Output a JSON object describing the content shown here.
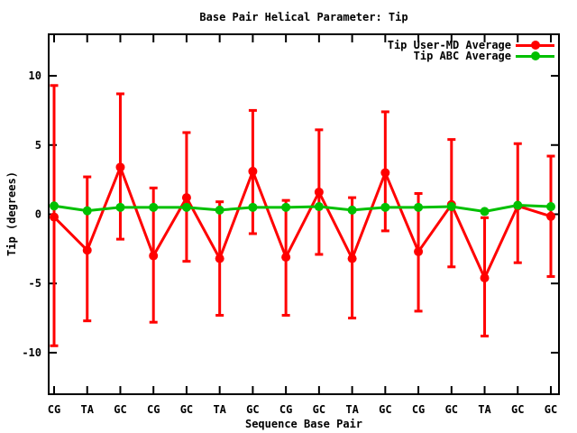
{
  "chart_data": {
    "type": "line",
    "title": "Base Pair Helical Parameter: Tip",
    "xlabel": "Sequence Base Pair",
    "ylabel": "Tip (degrees)",
    "ylim": [
      -13,
      13
    ],
    "yticks": [
      -10,
      -5,
      0,
      5,
      10
    ],
    "grid": false,
    "legend_position": "top-right-inside",
    "categories": [
      "CG",
      "TA",
      "GC",
      "CG",
      "GC",
      "TA",
      "GC",
      "CG",
      "GC",
      "TA",
      "GC",
      "CG",
      "GC",
      "TA",
      "GC",
      "GC"
    ],
    "series": [
      {
        "name": "Tip User-MD Average",
        "color": "#ff0000",
        "marker": "filled-circle",
        "values": [
          -0.2,
          -2.6,
          3.4,
          -3.0,
          1.2,
          -3.2,
          3.1,
          -3.1,
          1.6,
          -3.2,
          3.0,
          -2.7,
          0.7,
          -4.6,
          0.6,
          -0.15
        ],
        "err_high": [
          9.3,
          2.7,
          8.7,
          1.9,
          5.9,
          0.9,
          7.5,
          1.0,
          6.1,
          1.2,
          7.4,
          1.5,
          5.4,
          -0.25,
          5.1,
          4.2
        ],
        "err_low": [
          -9.5,
          -7.7,
          -1.8,
          -7.8,
          -3.4,
          -7.3,
          -1.4,
          -7.3,
          -2.9,
          -7.5,
          -1.2,
          -7.0,
          -3.8,
          -8.8,
          -3.5,
          -4.5
        ]
      },
      {
        "name": "Tip ABC Average",
        "color": "#00c000",
        "marker": "filled-circle",
        "values": [
          0.6,
          0.25,
          0.5,
          0.5,
          0.5,
          0.3,
          0.5,
          0.5,
          0.55,
          0.3,
          0.5,
          0.5,
          0.55,
          0.2,
          0.65,
          0.55
        ]
      }
    ]
  },
  "colors": {
    "background": "#ffffff",
    "axis": "#000000",
    "text": "#000000",
    "series_red": "#ff0000",
    "series_green": "#00c000"
  }
}
